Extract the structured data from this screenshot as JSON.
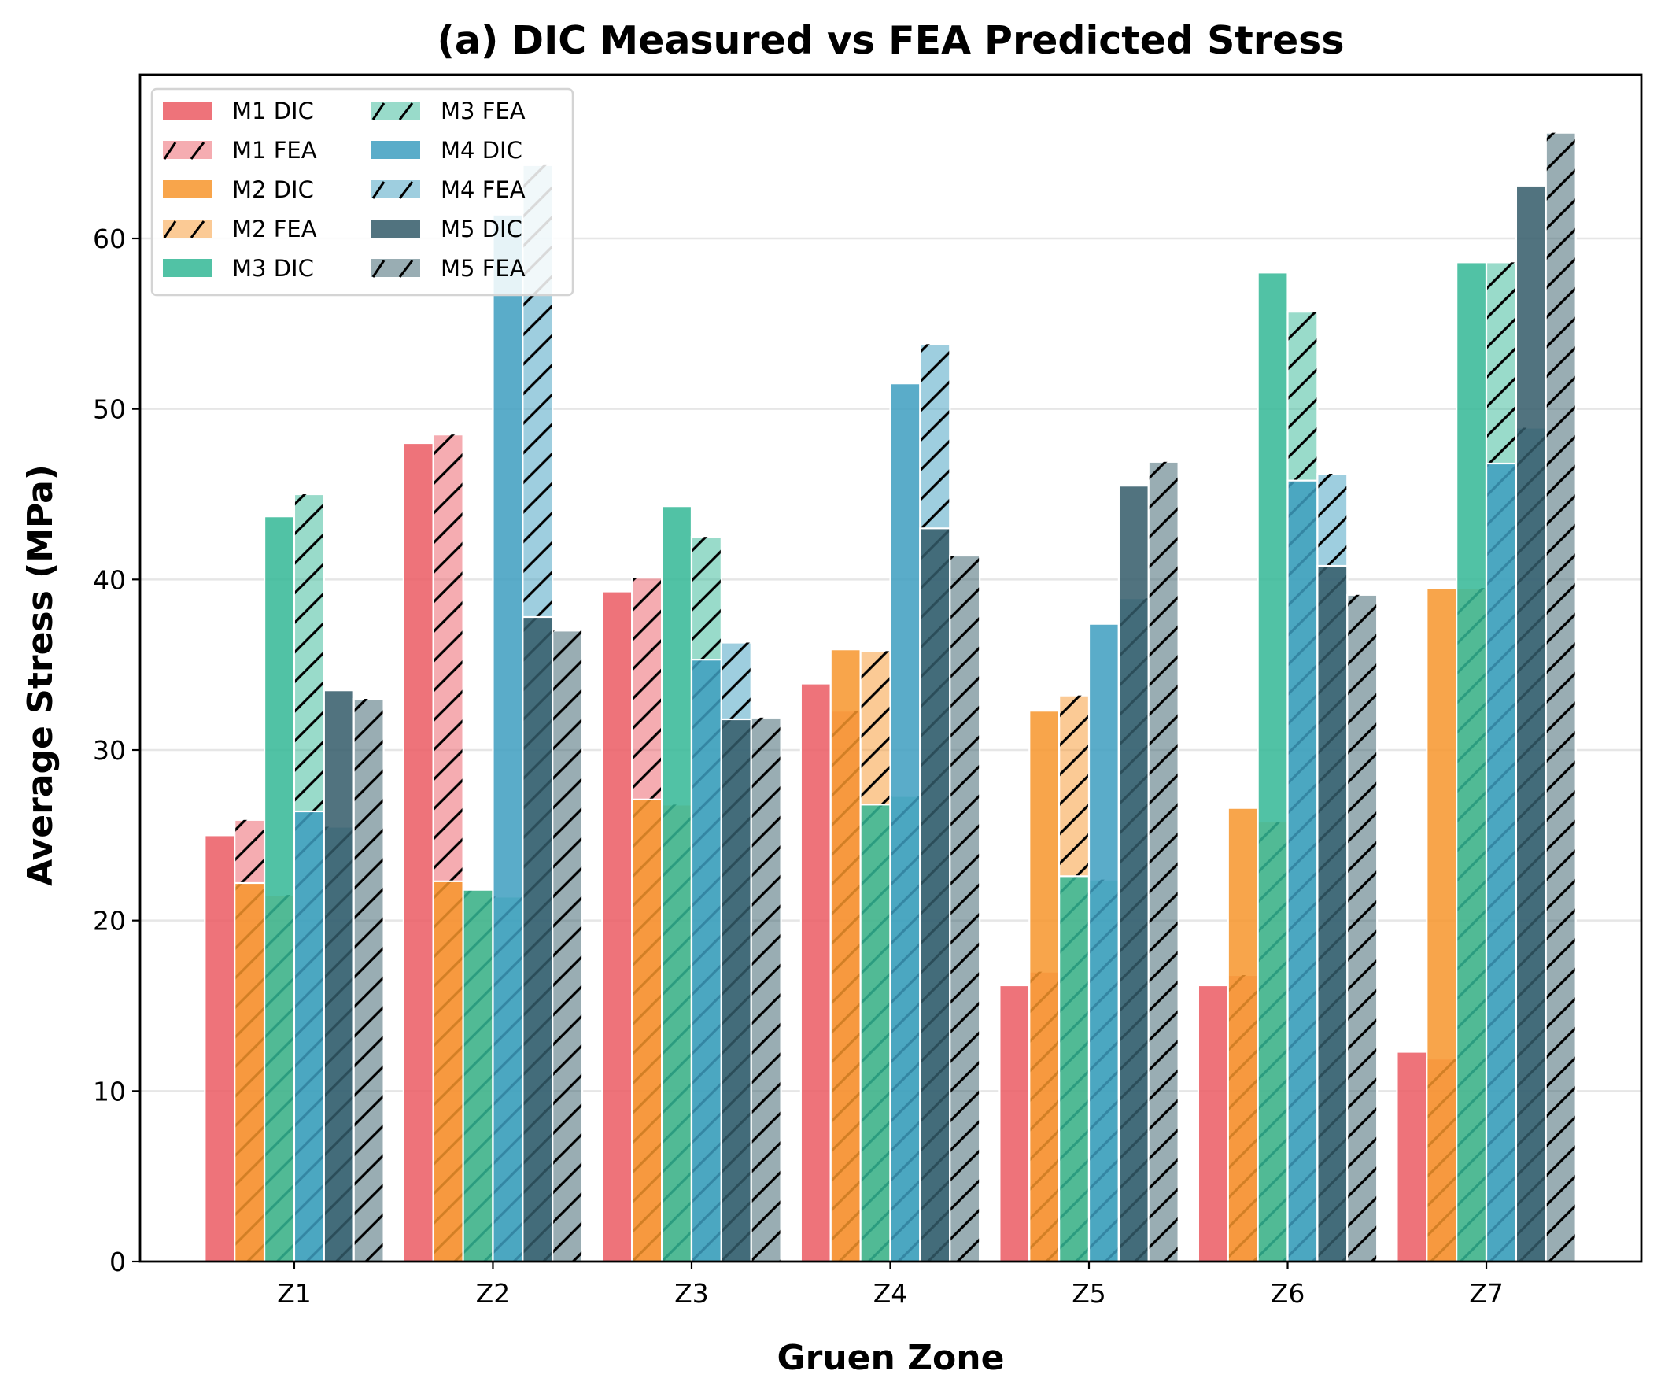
{
  "chart_data": {
    "type": "bar",
    "title": "(a) DIC Measured vs FEA Predicted Stress",
    "xlabel": "Gruen Zone",
    "ylabel": "Average Stress (MPa)",
    "categories": [
      "Z1",
      "Z2",
      "Z3",
      "Z4",
      "Z5",
      "Z6",
      "Z7"
    ],
    "ylim": [
      0,
      69.6
    ],
    "yticks": [
      0,
      10,
      20,
      30,
      40,
      50,
      60
    ],
    "grid": "y",
    "legend": {
      "placement": "top-left",
      "columns": 2
    },
    "series": [
      {
        "name": "M1 DIC",
        "model": "M1",
        "kind": "DIC",
        "color": "#EB5A63",
        "hatch": false,
        "values": [
          25.0,
          48.0,
          39.3,
          33.9,
          16.2,
          16.2,
          12.3
        ]
      },
      {
        "name": "M1 FEA",
        "model": "M1",
        "kind": "FEA",
        "color": "#EB5A63",
        "hatch": true,
        "values": [
          25.9,
          48.5,
          40.1,
          32.3,
          17.0,
          16.8,
          11.9
        ]
      },
      {
        "name": "M2 DIC",
        "model": "M2",
        "kind": "DIC",
        "color": "#F7952C",
        "hatch": false,
        "values": [
          22.2,
          22.3,
          27.1,
          35.9,
          32.3,
          26.6,
          39.5
        ]
      },
      {
        "name": "M2 FEA",
        "model": "M2",
        "kind": "FEA",
        "color": "#F7952C",
        "hatch": true,
        "values": [
          21.5,
          21.8,
          26.8,
          35.8,
          33.2,
          25.8,
          39.5
        ]
      },
      {
        "name": "M3 DIC",
        "model": "M3",
        "kind": "DIC",
        "color": "#33B795",
        "hatch": false,
        "values": [
          43.7,
          21.8,
          44.3,
          26.8,
          22.6,
          58.0,
          58.6
        ]
      },
      {
        "name": "M3 FEA",
        "model": "M3",
        "kind": "FEA",
        "color": "#33B795",
        "hatch": true,
        "values": [
          45.0,
          21.4,
          42.5,
          27.3,
          22.4,
          55.7,
          58.6
        ]
      },
      {
        "name": "M4 DIC",
        "model": "M4",
        "kind": "DIC",
        "color": "#3D9DBF",
        "hatch": false,
        "values": [
          26.4,
          61.4,
          35.3,
          51.5,
          37.4,
          45.8,
          46.8
        ]
      },
      {
        "name": "M4 FEA",
        "model": "M4",
        "kind": "FEA",
        "color": "#3D9DBF",
        "hatch": true,
        "values": [
          25.5,
          64.3,
          36.3,
          53.8,
          38.9,
          46.2,
          48.9
        ]
      },
      {
        "name": "M5 DIC",
        "model": "M5",
        "kind": "DIC",
        "color": "#335B68",
        "hatch": false,
        "values": [
          33.5,
          37.8,
          31.8,
          43.0,
          45.5,
          40.8,
          63.1
        ]
      },
      {
        "name": "M5 FEA",
        "model": "M5",
        "kind": "FEA",
        "color": "#335B68",
        "hatch": true,
        "values": [
          33.0,
          37.0,
          31.9,
          41.4,
          46.9,
          39.1,
          66.2
        ]
      }
    ]
  }
}
